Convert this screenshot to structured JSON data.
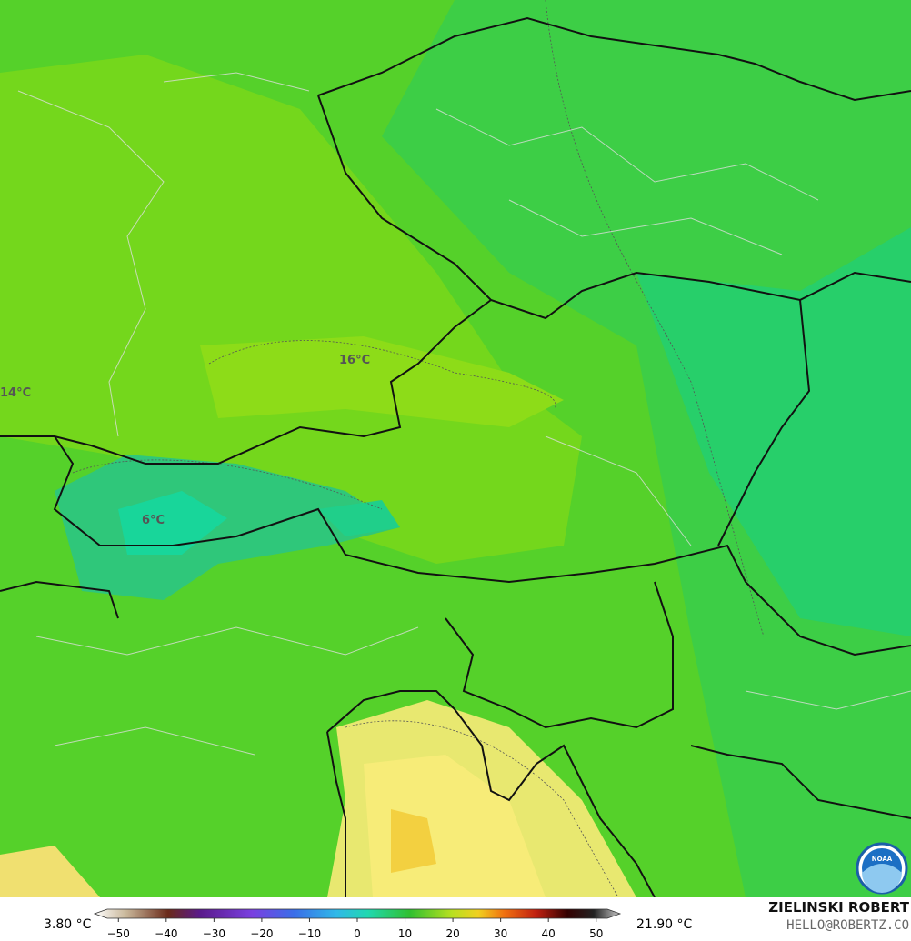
{
  "map": {
    "contour_labels": [
      "16°C",
      "14°C",
      "6°C"
    ],
    "logo": "NOAA",
    "colorbar": {
      "min_label": "3.80 °C",
      "max_label": "21.90 °C",
      "lim": [
        -55,
        55
      ],
      "ticks": [
        {
          "value": -50,
          "label": "−50"
        },
        {
          "value": -40,
          "label": "−40"
        },
        {
          "value": -30,
          "label": "−30"
        },
        {
          "value": -20,
          "label": "−20"
        },
        {
          "value": -10,
          "label": "−10"
        },
        0,
        10,
        20,
        30,
        40,
        50
      ]
    },
    "credit": {
      "author": "ZIELINSKI ROBERT",
      "email": "HELLO@ROBERTZ.CO"
    }
  }
}
